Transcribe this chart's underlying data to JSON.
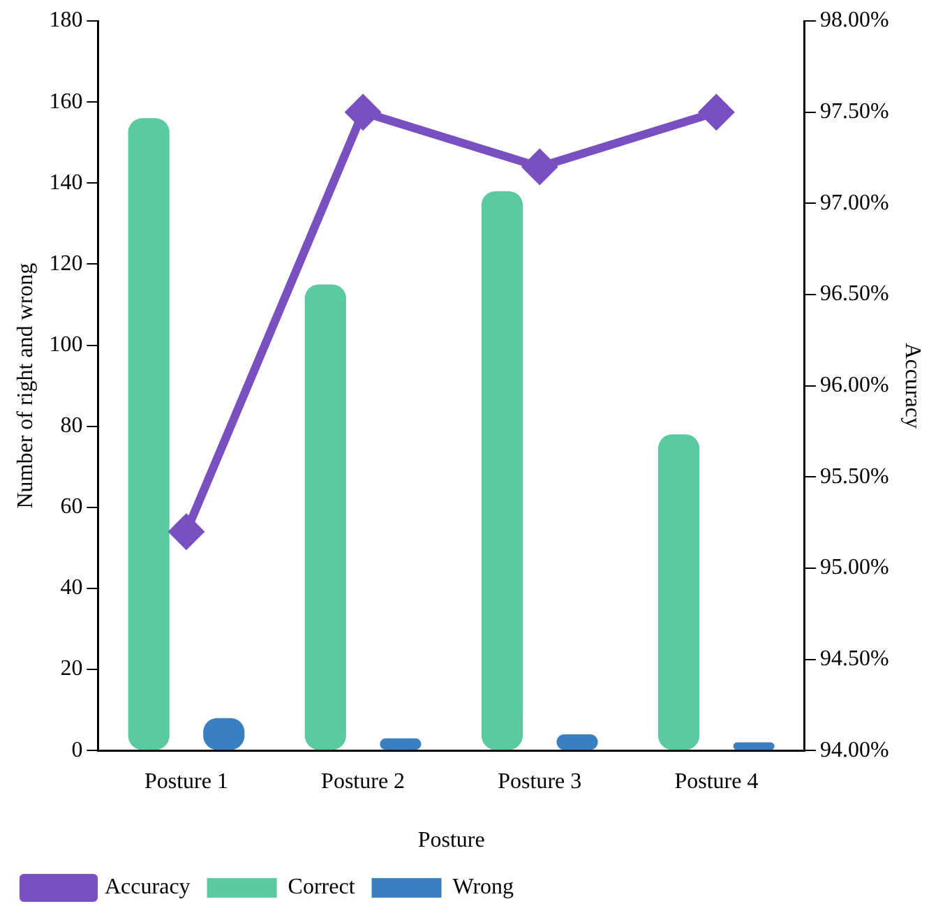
{
  "chart_data": {
    "type": "bar",
    "categories": [
      "Posture 1",
      "Posture 2",
      "Posture 3",
      "Posture 4"
    ],
    "xlabel": "Posture",
    "ylabel": "Number of right and wrong",
    "y2label": "Accuracy",
    "series": [
      {
        "name": "Correct",
        "color": "#5ccaa0",
        "values": [
          156,
          115,
          138,
          78
        ]
      },
      {
        "name": "Wrong",
        "color": "#3a80c0",
        "values": [
          8,
          3,
          4,
          2
        ]
      },
      {
        "name": "Accuracy",
        "type": "line",
        "axis": "y2",
        "color": "#7a50c0",
        "marker": "diamond",
        "values": [
          95.2,
          97.5,
          97.2,
          97.5
        ]
      }
    ],
    "ylim": [
      0,
      180
    ],
    "yticks": [
      0,
      20,
      40,
      60,
      80,
      100,
      120,
      140,
      160,
      180
    ],
    "y2lim": [
      94,
      98
    ],
    "y2ticks": [
      {
        "value": 94,
        "label": "94.00%"
      },
      {
        "value": 94.5,
        "label": "94.50%"
      },
      {
        "value": 95,
        "label": "95.00%"
      },
      {
        "value": 95.5,
        "label": "95.50%"
      },
      {
        "value": 96,
        "label": "96.00%"
      },
      {
        "value": 96.5,
        "label": "96.50%"
      },
      {
        "value": 97,
        "label": "97.00%"
      },
      {
        "value": 97.5,
        "label": "97.50%"
      },
      {
        "value": 98,
        "label": "98.00%"
      }
    ],
    "grid": false,
    "legend": "bottom left"
  }
}
